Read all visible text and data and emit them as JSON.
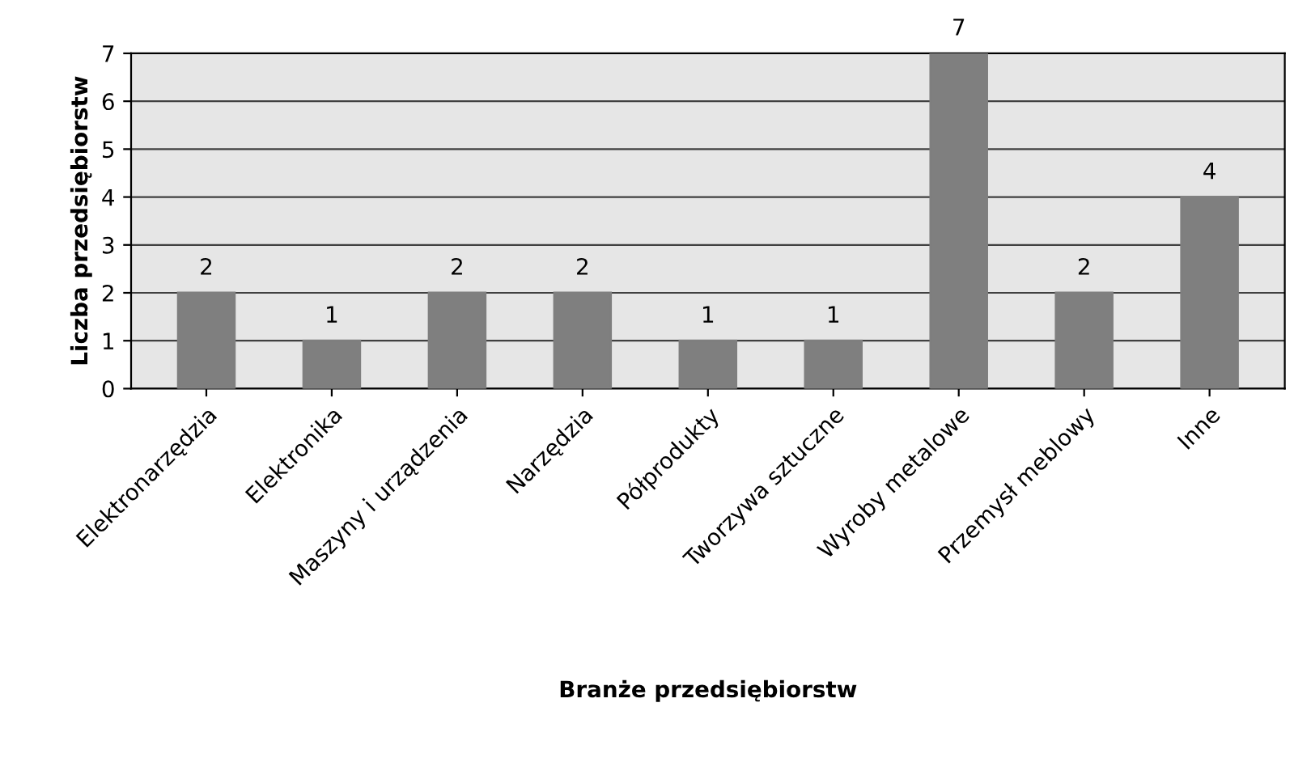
{
  "chart_data": {
    "type": "bar",
    "xlabel": "Branże przedsiębiorstw",
    "ylabel": "Liczba przedsiębiorstw",
    "categories": [
      "Elektronarzędzia",
      "Elektronika",
      "Maszyny i urządzenia",
      "Narzędzia",
      "Półprodukty",
      "Tworzywa sztuczne",
      "Wyroby metalowe",
      "Przemysł meblowy",
      "Inne"
    ],
    "values": [
      2,
      1,
      2,
      2,
      1,
      1,
      7,
      2,
      4
    ],
    "color": "#7f7f7f",
    "ylim": [
      0,
      7
    ],
    "yticks": [
      0,
      1,
      2,
      3,
      4,
      5,
      6,
      7
    ],
    "grid": "y",
    "data_labels": true
  }
}
